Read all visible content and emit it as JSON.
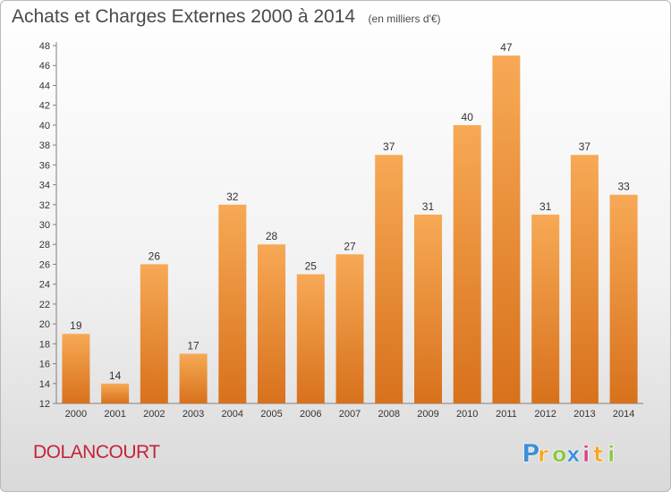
{
  "title": {
    "main": "Achats et Charges Externes 2000 à 2014",
    "unit": "(en milliers d'€)"
  },
  "commune": "DOLANCOURT",
  "brand": {
    "letters": [
      "P",
      "r",
      "o",
      "x",
      "i",
      "t",
      "i"
    ],
    "colors": [
      "#3d8fd8",
      "#f5a623",
      "#8cc63f",
      "#3d8fd8",
      "#d9418a",
      "#f5a623",
      "#8cc63f"
    ]
  },
  "colors": {
    "bar_top": "#f7a955",
    "bar_bottom": "#d8711c",
    "axis": "#7f7f7f",
    "grid": "#e6e6e6"
  },
  "chart_data": {
    "type": "bar",
    "title": "Achats et Charges Externes 2000 à 2014",
    "xlabel": "",
    "ylabel": "",
    "categories": [
      "2000",
      "2001",
      "2002",
      "2003",
      "2004",
      "2005",
      "2006",
      "2007",
      "2008",
      "2009",
      "2010",
      "2011",
      "2012",
      "2013",
      "2014"
    ],
    "values": [
      19,
      14,
      26,
      17,
      32,
      28,
      25,
      27,
      37,
      31,
      40,
      47,
      31,
      37,
      33
    ],
    "ylim": [
      12,
      48
    ],
    "yticks": [
      12,
      14,
      16,
      18,
      20,
      22,
      24,
      26,
      28,
      30,
      32,
      34,
      36,
      38,
      40,
      42,
      44,
      46,
      48
    ],
    "grid": false,
    "legend": "none"
  }
}
